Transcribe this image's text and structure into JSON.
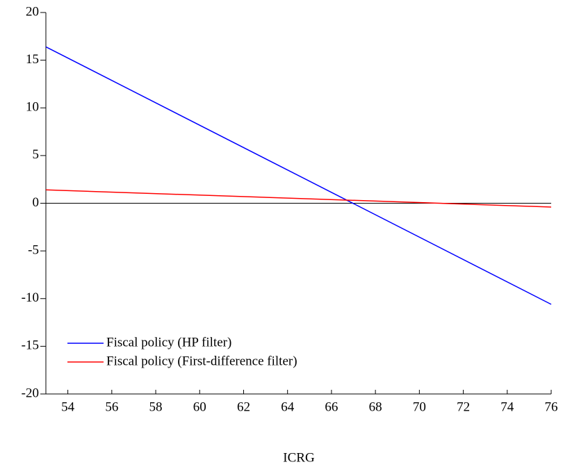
{
  "chart_data": {
    "type": "line",
    "x_label": "ICRG",
    "x": [
      53,
      76
    ],
    "series": [
      {
        "name": "Fiscal policy (HP filter)",
        "color": "#0000ff",
        "values": [
          16.4,
          -10.6
        ]
      },
      {
        "name": "Fiscal policy (First-difference filter)",
        "color": "#ff0000",
        "values": [
          1.4,
          -0.4
        ]
      }
    ],
    "xlim": [
      53,
      76
    ],
    "xticks": [
      54,
      56,
      58,
      60,
      62,
      64,
      66,
      68,
      70,
      72,
      74,
      76
    ],
    "ylim": [
      -20,
      20
    ],
    "yticks": [
      -20,
      -15,
      -10,
      -5,
      0,
      5,
      10,
      15,
      20
    ],
    "zero_line": true,
    "legend": "lower left"
  }
}
